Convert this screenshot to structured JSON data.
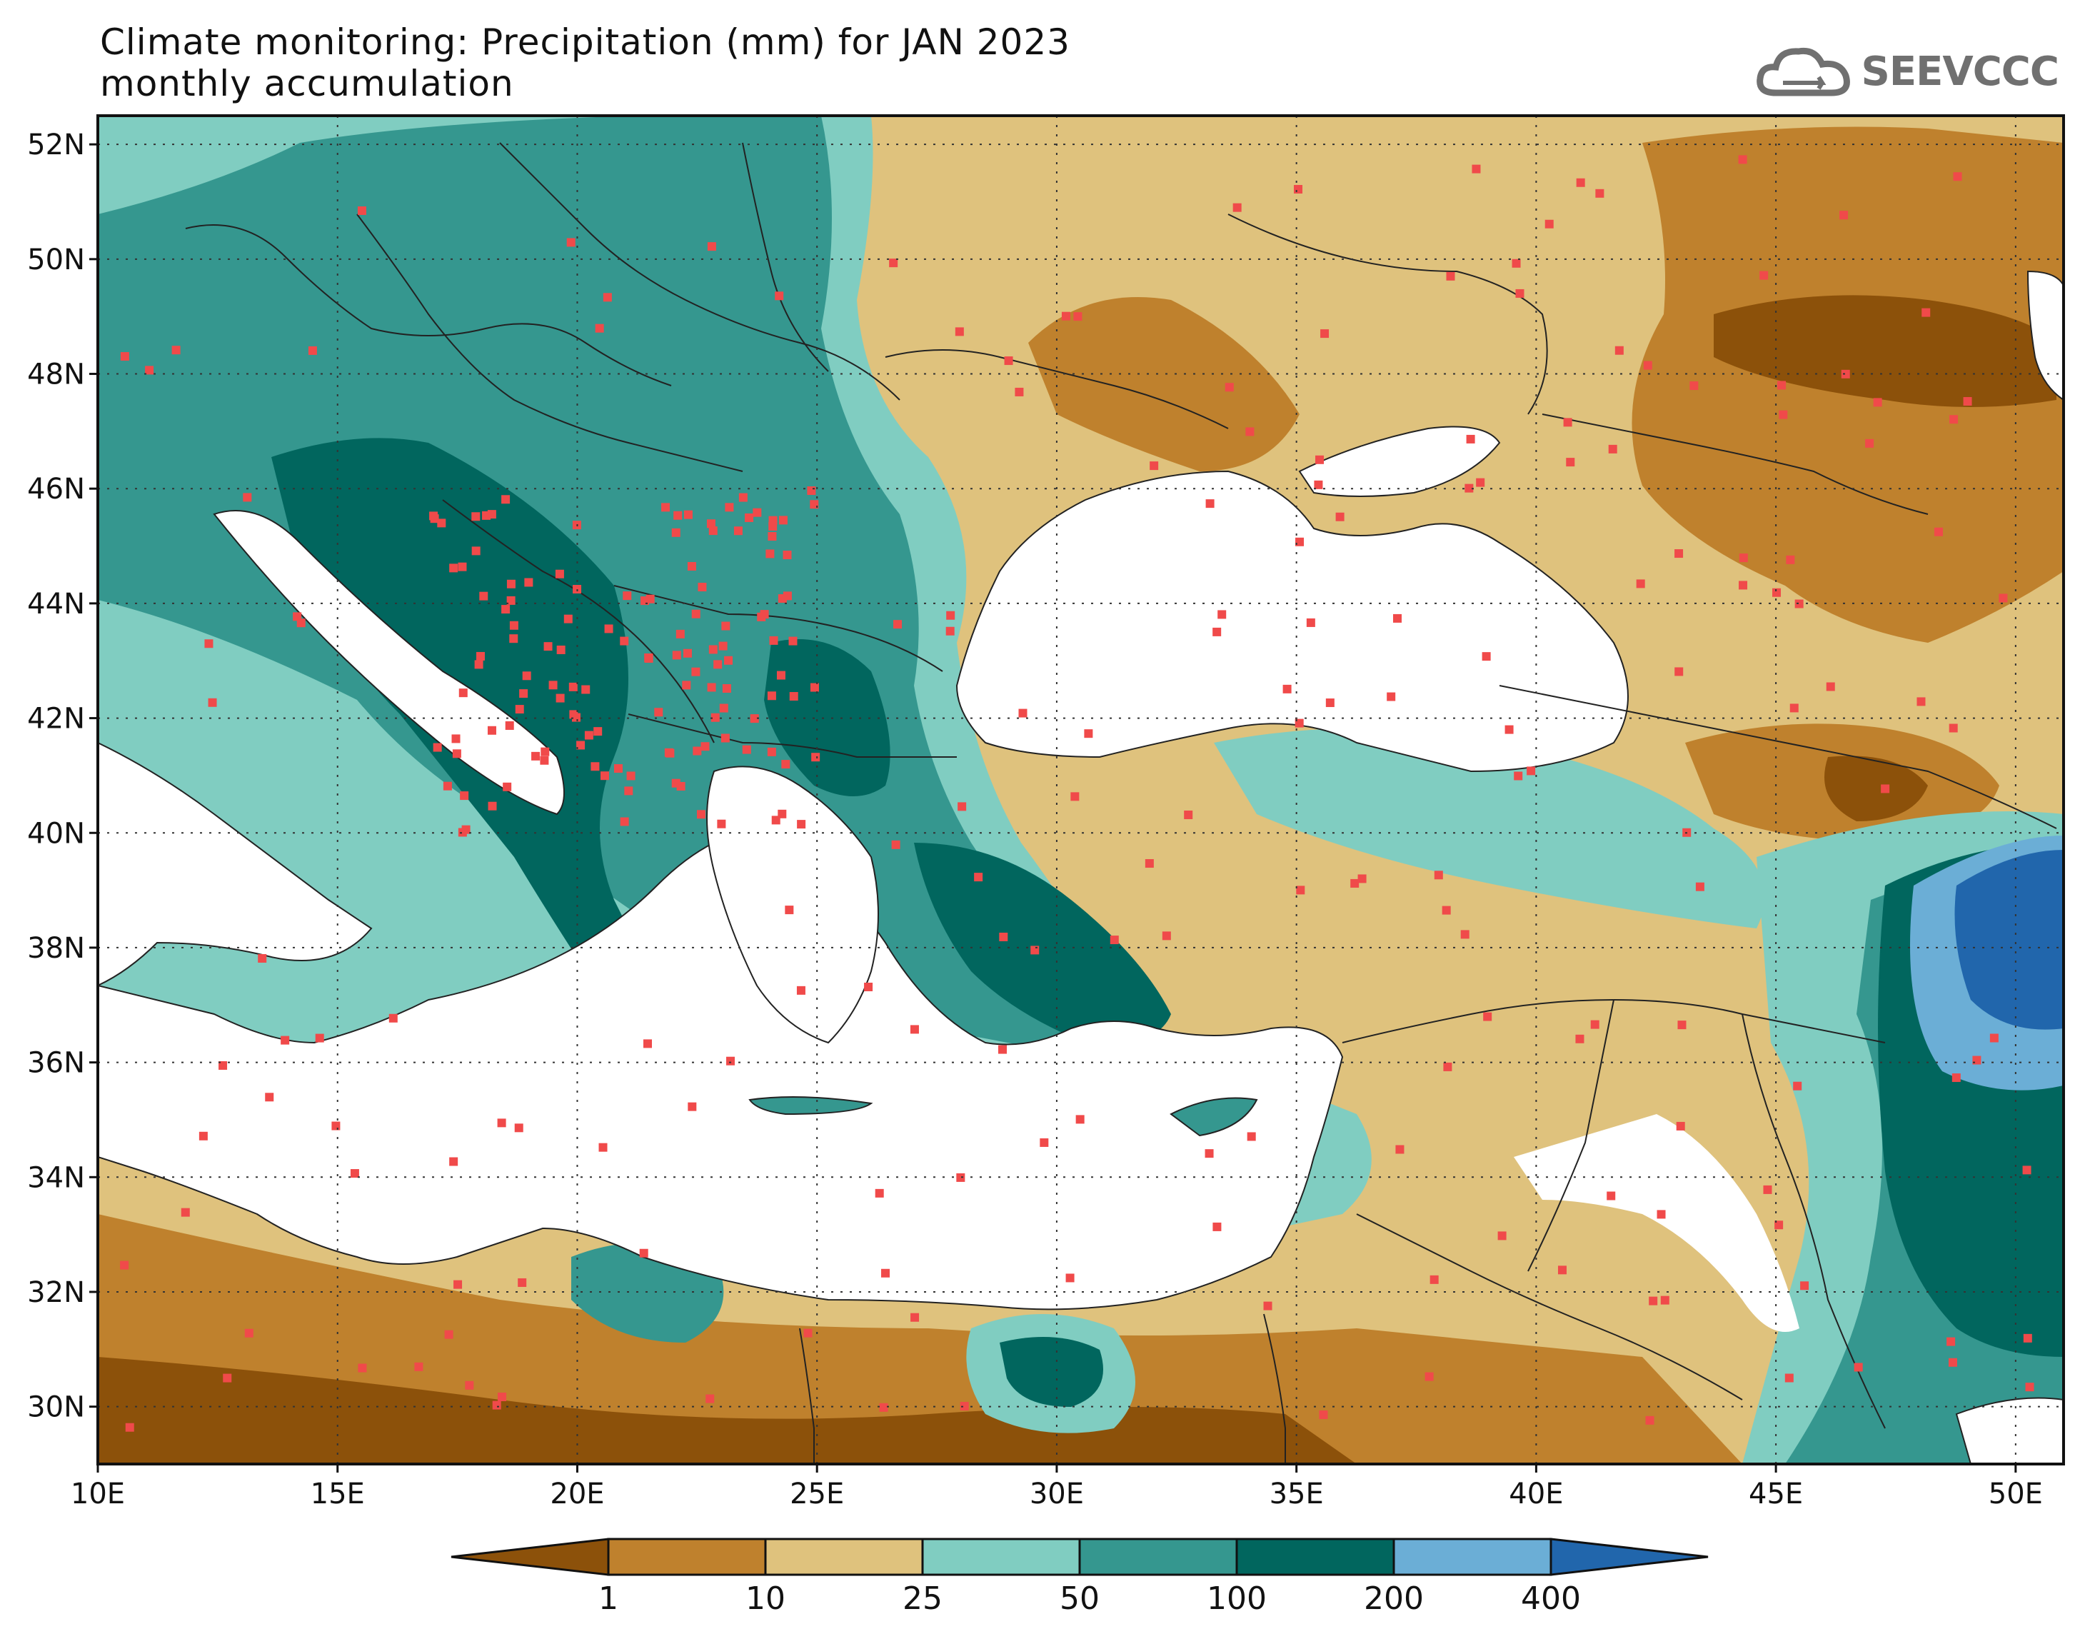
{
  "header": {
    "title_line1": "Climate monitoring: Precipitation (mm) for JAN 2023",
    "title_line2": "monthly accumulation",
    "logo_text": "SEEVCCC"
  },
  "map": {
    "lon_range": [
      10,
      51
    ],
    "lat_range": [
      29,
      52.5
    ],
    "lon_ticks": [
      "10E",
      "15E",
      "20E",
      "25E",
      "30E",
      "35E",
      "40E",
      "45E",
      "50E"
    ],
    "lat_ticks": [
      "52N",
      "50N",
      "48N",
      "46N",
      "44N",
      "42N",
      "40N",
      "38N",
      "36N",
      "34N",
      "32N",
      "30N"
    ],
    "gridlines": "dotted",
    "station_color": "#f04a4a"
  },
  "colorbar": {
    "colors": [
      "#8c510a",
      "#bf812d",
      "#dfc27d",
      "#80cdc1",
      "#35978f",
      "#01665e",
      "#6baed6",
      "#2166ac"
    ],
    "labels": [
      "1",
      "10",
      "25",
      "50",
      "100",
      "200",
      "400"
    ]
  }
}
